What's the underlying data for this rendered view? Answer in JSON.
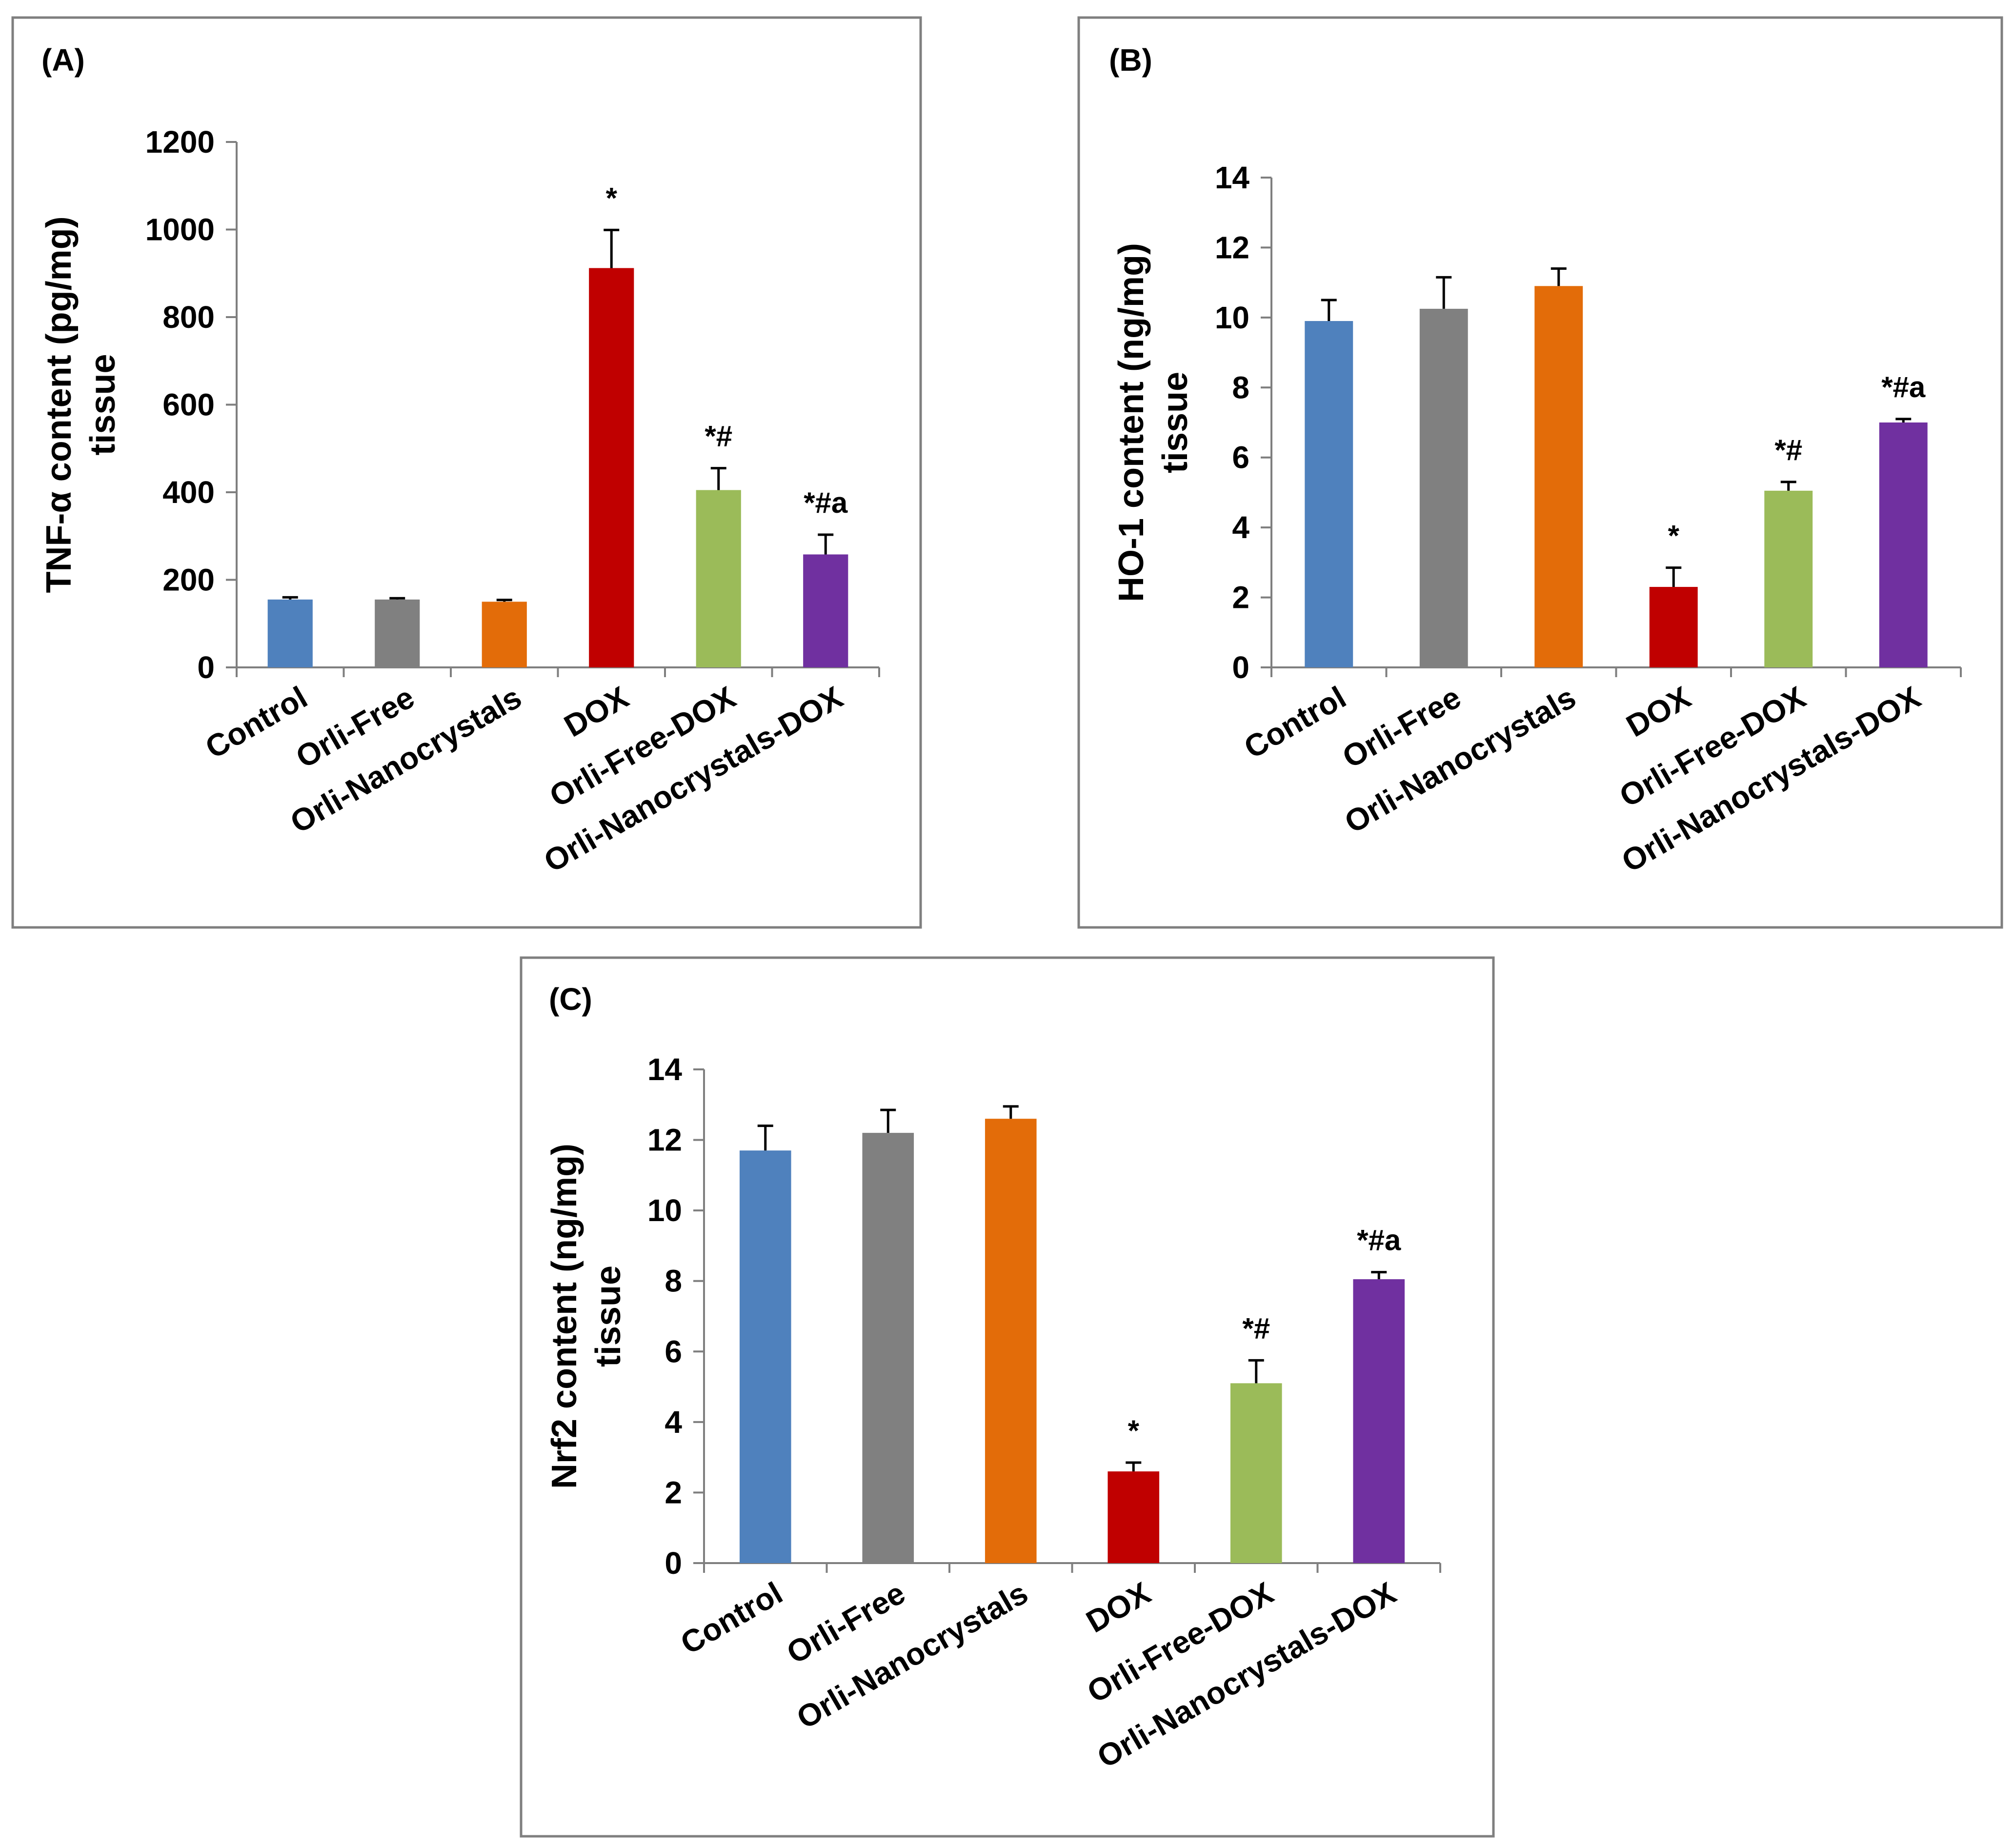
{
  "chart_data": [
    {
      "type": "bar",
      "panel_label": "(A)",
      "ylabel_lines": [
        "TNF-α content (pg/mg)",
        "tissue"
      ],
      "ylim": [
        0,
        1200
      ],
      "yticks": [
        0,
        200,
        400,
        600,
        800,
        1000,
        1200
      ],
      "categories": [
        "Control",
        "Orli-Free",
        "Orli-Nanocrystals",
        "DOX",
        "Orli-Free-DOX",
        "Orli-Nanocrystals-DOX"
      ],
      "values": [
        155,
        155,
        150,
        912,
        405,
        258
      ],
      "errors": [
        5,
        3,
        4,
        87,
        50,
        45
      ],
      "annotations": [
        "",
        "",
        "",
        "*",
        "*#",
        "*#a"
      ],
      "colors": [
        "#4f81bd",
        "#808080",
        "#e36c09",
        "#c00000",
        "#9bbb59",
        "#7030a0"
      ]
    },
    {
      "type": "bar",
      "panel_label": "(B)",
      "ylabel_lines": [
        "HO-1 content (ng/mg)",
        "tissue"
      ],
      "ylim": [
        0,
        14
      ],
      "yticks": [
        0,
        2,
        4,
        6,
        8,
        10,
        12,
        14
      ],
      "categories": [
        "Control",
        "Orli-Free",
        "Orli-Nanocrystals",
        "DOX",
        "Orli-Free-DOX",
        "Orli-Nanocrystals-DOX"
      ],
      "values": [
        9.9,
        10.25,
        10.9,
        2.3,
        5.05,
        7.0
      ],
      "errors": [
        0.6,
        0.9,
        0.5,
        0.55,
        0.25,
        0.1
      ],
      "annotations": [
        "",
        "",
        "",
        "*",
        "*#",
        "*#a"
      ],
      "colors": [
        "#4f81bd",
        "#808080",
        "#e36c09",
        "#c00000",
        "#9bbb59",
        "#7030a0"
      ]
    },
    {
      "type": "bar",
      "panel_label": "(C)",
      "ylabel_lines": [
        "Nrf2 content (ng/mg)",
        "tissue"
      ],
      "ylim": [
        0,
        14
      ],
      "yticks": [
        0,
        2,
        4,
        6,
        8,
        10,
        12,
        14
      ],
      "categories": [
        "Control",
        "Orli-Free",
        "Orli-Nanocrystals",
        "DOX",
        "Orli-Free-DOX",
        "Orli-Nanocrystals-DOX"
      ],
      "values": [
        11.7,
        12.2,
        12.6,
        2.6,
        5.1,
        8.05
      ],
      "errors": [
        0.7,
        0.65,
        0.35,
        0.25,
        0.65,
        0.2
      ],
      "annotations": [
        "",
        "",
        "",
        "*",
        "*#",
        "*#a"
      ],
      "colors": [
        "#4f81bd",
        "#808080",
        "#e36c09",
        "#c00000",
        "#9bbb59",
        "#7030a0"
      ]
    }
  ]
}
